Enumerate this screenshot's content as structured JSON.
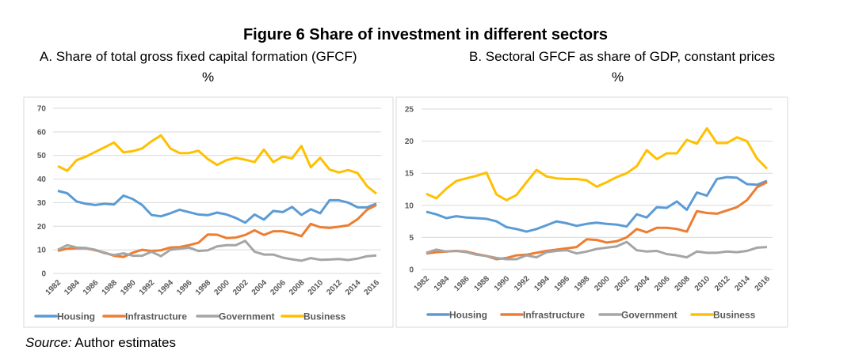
{
  "title": "Figure 6 Share of investment in different sectors",
  "source_label": "Source:",
  "source_text": "Author estimates",
  "chart_data": [
    {
      "type": "line",
      "title": "A. Share of total gross fixed capital formation (GFCF)",
      "unit": "%",
      "ylim": [
        0,
        70
      ],
      "yticks": [
        "0",
        "10",
        "20",
        "30",
        "40",
        "50",
        "60",
        "70"
      ],
      "ytick_values": [
        0,
        10,
        20,
        30,
        40,
        50,
        60,
        70
      ],
      "x": [
        1982,
        1983,
        1984,
        1985,
        1986,
        1987,
        1988,
        1989,
        1990,
        1991,
        1992,
        1993,
        1994,
        1995,
        1996,
        1997,
        1998,
        1999,
        2000,
        2001,
        2002,
        2003,
        2004,
        2005,
        2006,
        2007,
        2008,
        2009,
        2010,
        2011,
        2012,
        2013,
        2014,
        2015,
        2016
      ],
      "xticks": [
        "1982",
        "1984",
        "1986",
        "1988",
        "1990",
        "1992",
        "1994",
        "1996",
        "1998",
        "2000",
        "2002",
        "2004",
        "2006",
        "2008",
        "2010",
        "2012",
        "2014",
        "2016"
      ],
      "legend_position": "bottom",
      "grid": true,
      "series": [
        {
          "name": "Housing",
          "color": "#5b9bd5",
          "values": [
            35,
            34,
            30.5,
            29.5,
            29,
            29.5,
            29.2,
            33,
            31.5,
            29,
            24.8,
            24.2,
            25.5,
            27,
            26,
            25,
            24.7,
            25.8,
            25,
            23.5,
            21.5,
            25,
            22.8,
            26.5,
            26,
            28.2,
            24.8,
            27.2,
            25.5,
            31,
            31,
            30,
            28,
            28,
            29.6
          ]
        },
        {
          "name": "Infrastructure",
          "color": "#ed7d31",
          "values": [
            9.5,
            10.5,
            10.7,
            10.7,
            9.8,
            8.8,
            7.5,
            7,
            8.8,
            10,
            9.5,
            9.8,
            11,
            11.2,
            12,
            13,
            16.5,
            16.4,
            15,
            15.2,
            16.3,
            18.3,
            16.3,
            17.9,
            17.9,
            17,
            15.8,
            21,
            19.6,
            19.3,
            19.8,
            20.4,
            23,
            27,
            29
          ]
        },
        {
          "name": "Government",
          "color": "#a5a5a5",
          "values": [
            10,
            12,
            11,
            10.8,
            10,
            8.6,
            7.8,
            8.5,
            7.5,
            7.5,
            9.2,
            7.3,
            10,
            10.5,
            11,
            9.5,
            9.8,
            11.5,
            12,
            12,
            13.8,
            9.2,
            8,
            8,
            6.7,
            6,
            5.4,
            6.5,
            5.8,
            5.9,
            6.1,
            5.7,
            6.3,
            7.3,
            7.6
          ]
        },
        {
          "name": "Business",
          "color": "#ffc000",
          "values": [
            45.5,
            43.5,
            48,
            49.5,
            51.5,
            53.5,
            55.5,
            51.3,
            51.8,
            53,
            56,
            58.5,
            53,
            51,
            51,
            52,
            48.5,
            46,
            48,
            49,
            48.2,
            47.2,
            52.5,
            47.2,
            49.5,
            48.8,
            54,
            45,
            49,
            44,
            42.8,
            43.8,
            42.5,
            37,
            33.8
          ]
        }
      ]
    },
    {
      "type": "line",
      "title": "B. Sectoral GFCF as share of GDP, constant prices",
      "unit": "%",
      "ylim": [
        0,
        25
      ],
      "yticks": [
        "0",
        "5",
        "10",
        "15",
        "20",
        "25"
      ],
      "ytick_values": [
        0,
        5,
        10,
        15,
        20,
        25
      ],
      "x": [
        1982,
        1983,
        1984,
        1985,
        1986,
        1987,
        1988,
        1989,
        1990,
        1991,
        1992,
        1993,
        1994,
        1995,
        1996,
        1997,
        1998,
        1999,
        2000,
        2001,
        2002,
        2003,
        2004,
        2005,
        2006,
        2007,
        2008,
        2009,
        2010,
        2011,
        2012,
        2013,
        2014,
        2015,
        2016
      ],
      "xticks": [
        "1982",
        "1984",
        "1986",
        "1988",
        "1990",
        "1992",
        "1994",
        "1996",
        "1998",
        "2000",
        "2002",
        "2004",
        "2006",
        "2008",
        "2010",
        "2012",
        "2014",
        "2016"
      ],
      "legend_position": "bottom",
      "grid": true,
      "series": [
        {
          "name": "Housing",
          "color": "#5b9bd5",
          "values": [
            9,
            8.6,
            8,
            8.3,
            8.1,
            8,
            7.9,
            7.5,
            6.6,
            6.3,
            5.9,
            6.3,
            6.9,
            7.5,
            7.2,
            6.8,
            7.1,
            7.3,
            7.1,
            7,
            6.7,
            8.6,
            8.1,
            9.7,
            9.6,
            10.6,
            9.3,
            12,
            11.5,
            14.1,
            14.4,
            14.3,
            13.3,
            13.2,
            13.8
          ]
        },
        {
          "name": "Infrastructure",
          "color": "#ed7d31",
          "values": [
            2.5,
            2.7,
            2.8,
            2.9,
            2.8,
            2.4,
            2.1,
            1.6,
            1.8,
            2.2,
            2.3,
            2.6,
            2.9,
            3.1,
            3.3,
            3.5,
            4.7,
            4.6,
            4.2,
            4.4,
            5,
            6.3,
            5.8,
            6.5,
            6.5,
            6.3,
            5.9,
            9.1,
            8.8,
            8.7,
            9.2,
            9.7,
            10.8,
            12.8,
            13.6
          ]
        },
        {
          "name": "Government",
          "color": "#a5a5a5",
          "values": [
            2.6,
            3.1,
            2.8,
            2.9,
            2.7,
            2.3,
            2.1,
            1.8,
            1.6,
            1.6,
            2.2,
            1.9,
            2.7,
            2.9,
            3,
            2.5,
            2.8,
            3.2,
            3.4,
            3.6,
            4.3,
            3,
            2.8,
            2.9,
            2.4,
            2.2,
            1.9,
            2.8,
            2.6,
            2.6,
            2.8,
            2.7,
            2.9,
            3.4,
            3.5
          ]
        },
        {
          "name": "Business",
          "color": "#ffc000",
          "values": [
            11.8,
            11.1,
            12.6,
            13.8,
            14.2,
            14.6,
            15.1,
            11.7,
            10.8,
            11.6,
            13.6,
            15.5,
            14.5,
            14.2,
            14.1,
            14.1,
            13.9,
            12.9,
            13.6,
            14.4,
            15,
            16.1,
            18.6,
            17.2,
            18.1,
            18.1,
            20.2,
            19.6,
            22,
            19.7,
            19.7,
            20.6,
            20,
            17.3,
            15.7
          ]
        }
      ]
    }
  ]
}
